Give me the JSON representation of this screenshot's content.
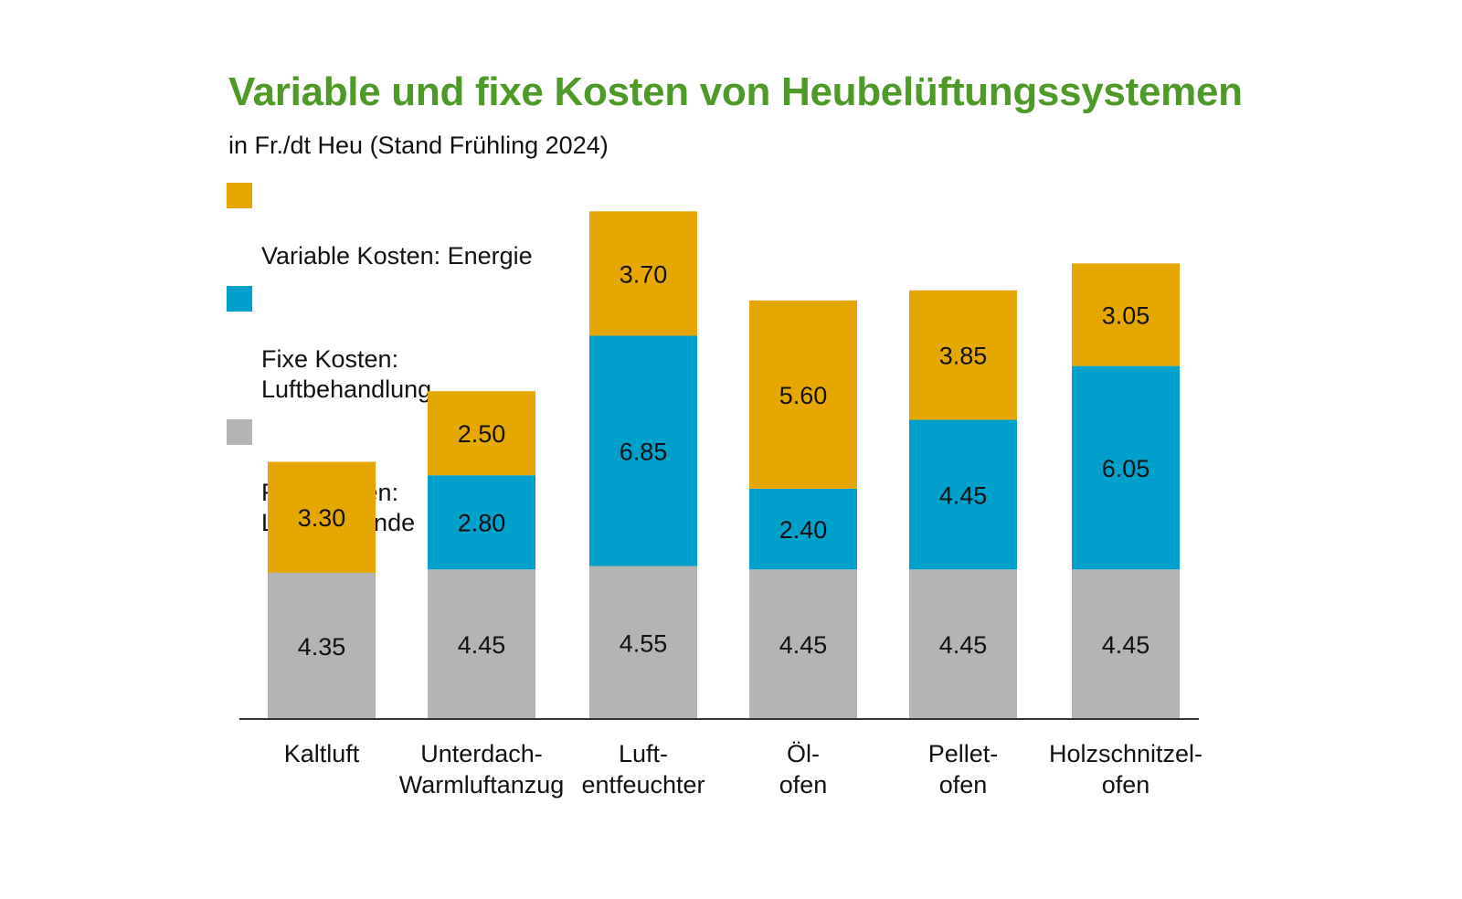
{
  "colors": {
    "energie": "#e6a800",
    "luftbehandlung": "#00a0cc",
    "luefter": "#b3b5b4",
    "title": "#4e9a26"
  },
  "chart_data": {
    "type": "bar",
    "stacked": true,
    "title": "Variable und fixe Kosten von Heubelüftungssystemen",
    "subtitle": "in Fr./dt Heu (Stand Frühling 2024)",
    "categories": [
      "Kaltluft",
      "Unterdach-\nWarmluftanzug",
      "Luft-\nentfeuchter",
      "Öl-\nofen",
      "Pellet-\nofen",
      "Holzschnitzel-\nofen"
    ],
    "series": [
      {
        "name": "Fixe Kosten:\nLüfter, Wände",
        "color": "#b3b5b4",
        "values": [
          4.35,
          4.45,
          4.55,
          4.45,
          4.45,
          4.45
        ],
        "labels": [
          "4.35",
          "4.45",
          "4.55",
          "4.45",
          "4.45",
          "4.45"
        ]
      },
      {
        "name": "Fixe Kosten:\nLuftbehandlung",
        "color": "#00a0cc",
        "values": [
          0,
          2.8,
          6.85,
          2.4,
          4.45,
          6.05
        ],
        "labels": [
          "",
          "2.80",
          "6.85",
          "2.40",
          "4.45",
          "6.05"
        ]
      },
      {
        "name": "Variable Kosten: Energie",
        "color": "#e6a800",
        "values": [
          3.3,
          2.5,
          3.7,
          5.6,
          3.85,
          3.05
        ],
        "labels": [
          "3.30",
          "2.50",
          "3.70",
          "5.60",
          "3.85",
          "3.05"
        ]
      }
    ],
    "legend": [
      "Variable Kosten: Energie",
      "Fixe Kosten:\nLuftbehandlung",
      "Fixe Kosten:\nLüfter, Wände"
    ],
    "legend_position": "top-left",
    "grid": false,
    "ylim": [
      0,
      15.5
    ]
  }
}
